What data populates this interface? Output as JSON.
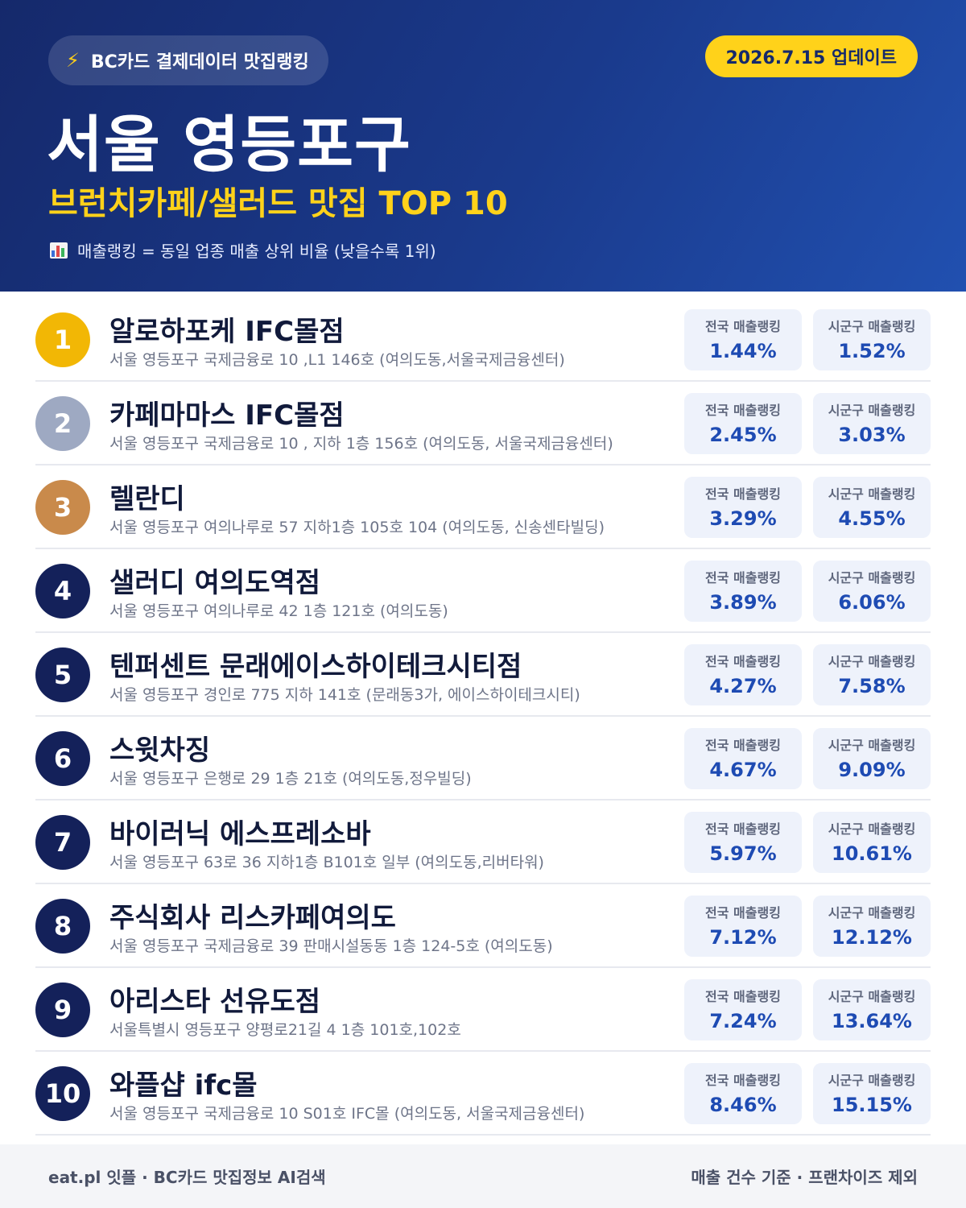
{
  "header": {
    "badge_icon": "lightning-icon",
    "badge_text": "BC카드 결제데이터 맛집랭킹",
    "update_text": "2026.7.15 업데이트",
    "title": "서울 영등포구",
    "subtitle": "브런치카페/샐러드 맛집 TOP 10",
    "note_icon": "bar-chart-icon",
    "note": "매출랭킹 = 동일 업종 매출 상위 비율 (낮을수록 1위)"
  },
  "colors": {
    "gold": "#f2b705",
    "silver": "#9ea9c2",
    "bronze": "#c98a4b",
    "navy": "#14215a",
    "accent_yellow": "#ffd21a",
    "value_blue": "#1e4bb3"
  },
  "labels": {
    "national": "전국 매출랭킹",
    "district": "시군구 매출랭킹"
  },
  "restaurants": [
    {
      "rank": "1",
      "name": "알로하포케 IFC몰점",
      "address": "서울 영등포구 국제금융로 10 ,L1 146호 (여의도동,서울국제금융센터)",
      "national": "1.44%",
      "district": "1.52%"
    },
    {
      "rank": "2",
      "name": "카페마마스 IFC몰점",
      "address": "서울 영등포구 국제금융로 10 , 지하 1층 156호 (여의도동, 서울국제금융센터)",
      "national": "2.45%",
      "district": "3.03%"
    },
    {
      "rank": "3",
      "name": "렐란디",
      "address": "서울 영등포구 여의나루로 57 지하1층 105호 104 (여의도동, 신송센타빌딩)",
      "national": "3.29%",
      "district": "4.55%"
    },
    {
      "rank": "4",
      "name": "샐러디 여의도역점",
      "address": "서울 영등포구 여의나루로 42 1층 121호 (여의도동)",
      "national": "3.89%",
      "district": "6.06%"
    },
    {
      "rank": "5",
      "name": "텐퍼센트 문래에이스하이테크시티점",
      "address": "서울 영등포구 경인로 775 지하 141호 (문래동3가, 에이스하이테크시티)",
      "national": "4.27%",
      "district": "7.58%"
    },
    {
      "rank": "6",
      "name": "스윗차징",
      "address": "서울 영등포구 은행로 29 1층 21호 (여의도동,정우빌딩)",
      "national": "4.67%",
      "district": "9.09%"
    },
    {
      "rank": "7",
      "name": "바이러닉 에스프레소바",
      "address": "서울 영등포구 63로 36 지하1층 B101호 일부 (여의도동,리버타워)",
      "national": "5.97%",
      "district": "10.61%"
    },
    {
      "rank": "8",
      "name": "주식회사 리스카페여의도",
      "address": "서울 영등포구 국제금융로 39 판매시설동동 1층 124-5호 (여의도동)",
      "national": "7.12%",
      "district": "12.12%"
    },
    {
      "rank": "9",
      "name": "아리스타 선유도점",
      "address": "서울특별시 영등포구 양평로21길 4 1층 101호,102호",
      "national": "7.24%",
      "district": "13.64%"
    },
    {
      "rank": "10",
      "name": "와플샵 ifc몰",
      "address": "서울 영등포구 국제금융로 10 S01호 IFC몰 (여의도동, 서울국제금융센터)",
      "national": "8.46%",
      "district": "15.15%"
    }
  ],
  "footer": {
    "left": "eat.pl 잇플 · BC카드 맛집정보 AI검색",
    "right": "매출 건수 기준 · 프랜차이즈 제외"
  }
}
